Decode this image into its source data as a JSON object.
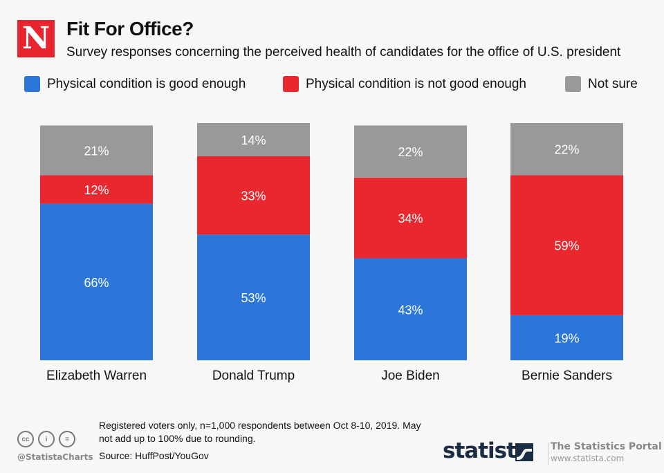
{
  "header": {
    "logo_letter": "N",
    "title": "Fit For Office?",
    "subtitle": "Survey responses concerning the perceived health of candidates for the office of U.S. president"
  },
  "legend": [
    {
      "label": "Physical condition is good enough",
      "color": "#2c76d9"
    },
    {
      "label": "Physical condition is not good enough",
      "color": "#e8272f"
    },
    {
      "label": "Not sure",
      "color": "#999999"
    }
  ],
  "chart_data": {
    "type": "bar",
    "stacked": true,
    "title": "Fit For Office?",
    "subtitle": "Survey responses concerning the perceived health of candidates for the office of U.S. president",
    "categories": [
      "Elizabeth Warren",
      "Donald Trump",
      "Joe Biden",
      "Bernie Sanders"
    ],
    "series": [
      {
        "name": "Physical condition is good enough",
        "color": "#2c76d9",
        "values": [
          66,
          53,
          43,
          19
        ]
      },
      {
        "name": "Physical condition is not good enough",
        "color": "#e8272f",
        "values": [
          12,
          33,
          34,
          59
        ]
      },
      {
        "name": "Not sure",
        "color": "#999999",
        "values": [
          21,
          14,
          22,
          22
        ]
      }
    ],
    "value_suffix": "%",
    "ylim": [
      0,
      100
    ],
    "grid": false,
    "legend_position": "top"
  },
  "footer": {
    "note": "Registered voters only, n=1,000 respondents between Oct 8-10, 2019. May not add up to 100% due to rounding.",
    "source": "Source: HuffPost/YouGov",
    "handle": "@StatistaCharts",
    "cc_icons": [
      "cc-icon",
      "by-icon",
      "nd-icon"
    ],
    "cc_labels": [
      "cc",
      "i",
      "="
    ],
    "brand": "statista",
    "portal_title": "The Statistics Portal",
    "portal_url": "www.statista.com"
  }
}
